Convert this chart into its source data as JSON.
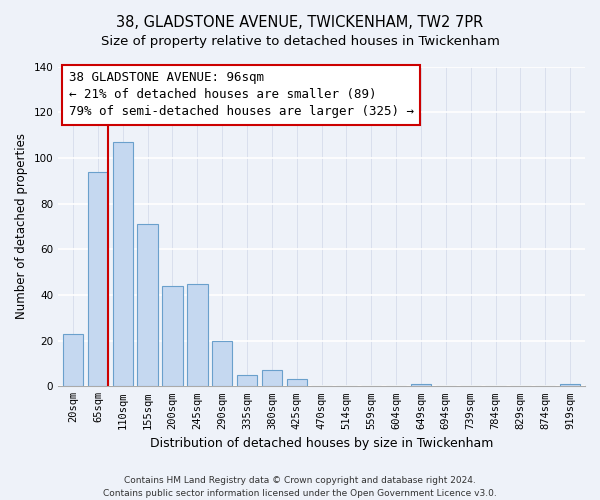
{
  "title": "38, GLADSTONE AVENUE, TWICKENHAM, TW2 7PR",
  "subtitle": "Size of property relative to detached houses in Twickenham",
  "xlabel": "Distribution of detached houses by size in Twickenham",
  "ylabel": "Number of detached properties",
  "bar_labels": [
    "20sqm",
    "65sqm",
    "110sqm",
    "155sqm",
    "200sqm",
    "245sqm",
    "290sqm",
    "335sqm",
    "380sqm",
    "425sqm",
    "470sqm",
    "514sqm",
    "559sqm",
    "604sqm",
    "649sqm",
    "694sqm",
    "739sqm",
    "784sqm",
    "829sqm",
    "874sqm",
    "919sqm"
  ],
  "bar_values": [
    23,
    94,
    107,
    71,
    44,
    45,
    20,
    5,
    7,
    3,
    0,
    0,
    0,
    0,
    1,
    0,
    0,
    0,
    0,
    0,
    1
  ],
  "bar_color": "#c5d8f0",
  "bar_edge_color": "#6aa0cc",
  "vline_color": "#cc0000",
  "ylim": [
    0,
    140
  ],
  "yticks": [
    0,
    20,
    40,
    60,
    80,
    100,
    120,
    140
  ],
  "annotation_title": "38 GLADSTONE AVENUE: 96sqm",
  "annotation_line1": "← 21% of detached houses are smaller (89)",
  "annotation_line2": "79% of semi-detached houses are larger (325) →",
  "footer_line1": "Contains HM Land Registry data © Crown copyright and database right 2024.",
  "footer_line2": "Contains public sector information licensed under the Open Government Licence v3.0.",
  "background_color": "#eef2f9",
  "grid_color": "#d0d8e8",
  "title_fontsize": 10.5,
  "subtitle_fontsize": 9.5,
  "xlabel_fontsize": 9,
  "ylabel_fontsize": 8.5,
  "tick_fontsize": 7.5,
  "annotation_fontsize": 9,
  "footer_fontsize": 6.5
}
